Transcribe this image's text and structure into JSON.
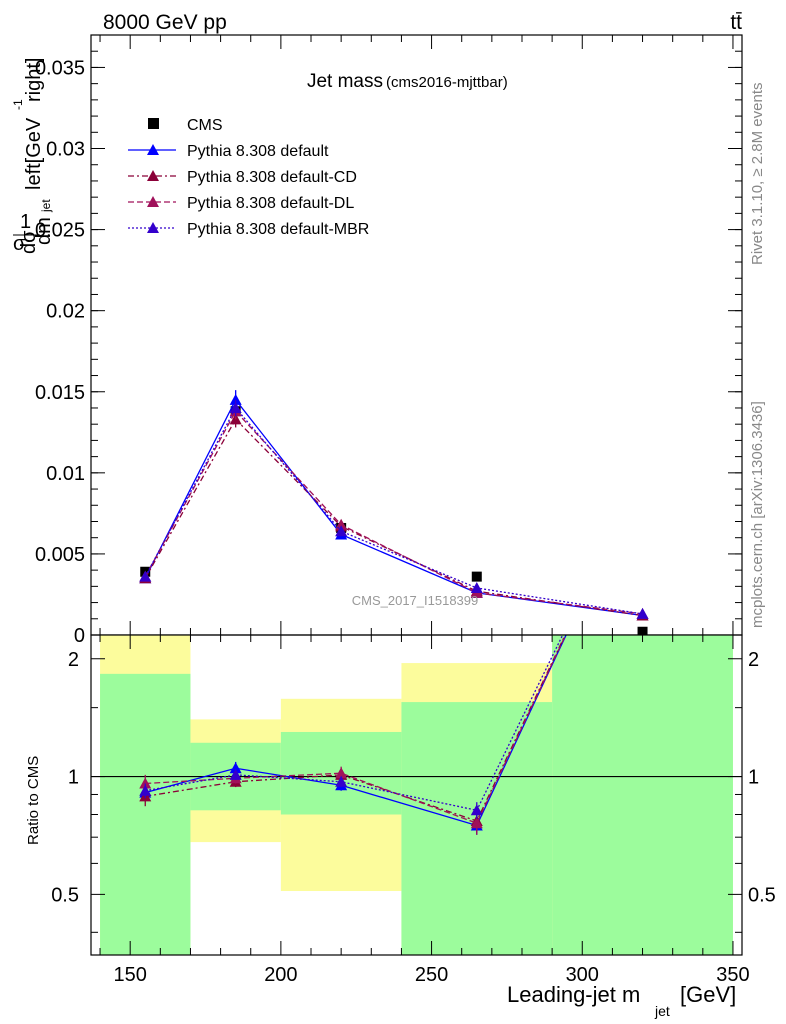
{
  "header": {
    "energy_label": "8000 GeV pp",
    "process_label": "tt̄",
    "rivet_label": "Rivet 3.1.10, ≥ 2.8M events",
    "mcplots_label": "mcplots.cern.ch [arXiv:1306.3436]",
    "watermark": "CMS_2017_I1518399"
  },
  "chart_data": [
    {
      "type": "line",
      "panel": "main",
      "title": "Jet mass",
      "subtitle": "(cms2016-mjttbar)",
      "ylabel": "1/σ dσ/dm_jet left[GeV^-1 right]",
      "xlim": [
        137,
        353
      ],
      "ylim": [
        0,
        0.037
      ],
      "x_ticks": [
        150,
        200,
        250,
        300,
        350
      ],
      "y_ticks": [
        {
          "v": 0.005,
          "label": "0.005"
        },
        {
          "v": 0.01,
          "label": "0.01"
        },
        {
          "v": 0.015,
          "label": "0.015"
        },
        {
          "v": 0.02,
          "label": "0.02"
        },
        {
          "v": 0.025,
          "label": "0.025"
        },
        {
          "v": 0.03,
          "label": "0.03"
        },
        {
          "v": 0.035,
          "label": "0.035"
        },
        {
          "v": 0,
          "label": "0"
        }
      ],
      "legend_position": "top-left",
      "series": [
        {
          "name": "CMS",
          "style": "data",
          "color": "#000000",
          "x": [
            155,
            185,
            220,
            265,
            320
          ],
          "y": [
            0.0039,
            0.0138,
            0.0066,
            0.0036,
            0.0002
          ]
        },
        {
          "name": "Pythia 8.308 default",
          "style": "solid",
          "color": "#0000ff",
          "x": [
            155,
            185,
            220,
            265,
            320
          ],
          "y": [
            0.0035,
            0.0145,
            0.0062,
            0.0026,
            0.0012
          ],
          "err": [
            0.0002,
            0.0006,
            0.0003,
            0.0002,
            0.0001
          ]
        },
        {
          "name": "Pythia 8.308 default-CD",
          "style": "dashdot",
          "color": "#8b0038",
          "x": [
            155,
            185,
            220,
            265,
            320
          ],
          "y": [
            0.0035,
            0.0133,
            0.0067,
            0.0027,
            0.0012
          ],
          "err": [
            0.0002,
            0.0005,
            0.0003,
            0.0002,
            0.0001
          ]
        },
        {
          "name": "Pythia 8.308 default-DL",
          "style": "dashed",
          "color": "#a0105a",
          "x": [
            155,
            185,
            220,
            265,
            320
          ],
          "y": [
            0.0036,
            0.0138,
            0.0068,
            0.0026,
            0.0013
          ],
          "err": [
            0.0002,
            0.0005,
            0.0003,
            0.0002,
            0.0001
          ]
        },
        {
          "name": "Pythia 8.308 default-MBR",
          "style": "dotted",
          "color": "#3300cc",
          "x": [
            155,
            185,
            220,
            265,
            320
          ],
          "y": [
            0.0036,
            0.014,
            0.0064,
            0.0029,
            0.0013
          ],
          "err": [
            0.0002,
            0.0005,
            0.0003,
            0.0002,
            0.0001
          ]
        }
      ]
    },
    {
      "type": "line",
      "panel": "ratio",
      "xlabel": "Leading-jet m_jet [GeV]",
      "ylabel": "Ratio to CMS",
      "xlim": [
        137,
        353
      ],
      "ylim": [
        0.35,
        2.3
      ],
      "scale": "log",
      "x_ticks": [
        150,
        200,
        250,
        300,
        350
      ],
      "y_ticks": [
        {
          "v": 0.5,
          "label": "0.5"
        },
        {
          "v": 1,
          "label": "1"
        },
        {
          "v": 2,
          "label": "2"
        }
      ],
      "bands": [
        {
          "x0": 140,
          "x1": 170,
          "y1_lo": 0.15,
          "y1_hi": 1.83,
          "y2_lo": 0.15,
          "y2_hi": 2.3
        },
        {
          "x0": 170,
          "x1": 200,
          "y1_lo": 0.82,
          "y1_hi": 1.22,
          "y2_lo": 0.68,
          "y2_hi": 1.4
        },
        {
          "x0": 200,
          "x1": 240,
          "y1_lo": 0.8,
          "y1_hi": 1.3,
          "y2_lo": 0.51,
          "y2_hi": 1.58
        },
        {
          "x0": 240,
          "x1": 290,
          "y1_lo": 0.15,
          "y1_hi": 1.55,
          "y2_lo": 0.15,
          "y2_hi": 1.95
        },
        {
          "x0": 290,
          "x1": 350,
          "y1_lo": 0.15,
          "y1_hi": 3.0,
          "y2_lo": 0.15,
          "y2_hi": 3.0
        }
      ],
      "band_colors": {
        "inner": "#9cfc9c",
        "outer": "#fcfc9c"
      },
      "series": [
        {
          "name": "Pythia 8.308 default",
          "style": "solid",
          "color": "#0000ff",
          "x": [
            155,
            185,
            220,
            265,
            320
          ],
          "y": [
            0.91,
            1.05,
            0.95,
            0.75,
            6.0
          ],
          "err": [
            0.04,
            0.04,
            0.03,
            0.04,
            0
          ]
        },
        {
          "name": "Pythia 8.308 default-CD",
          "style": "dashdot",
          "color": "#8b0038",
          "x": [
            155,
            185,
            220,
            265,
            320
          ],
          "y": [
            0.89,
            0.97,
            1.01,
            0.77,
            6.0
          ],
          "err": [
            0.05,
            0.03,
            0.04,
            0.05,
            0
          ]
        },
        {
          "name": "Pythia 8.308 default-DL",
          "style": "dashed",
          "color": "#a0105a",
          "x": [
            155,
            185,
            220,
            265,
            320
          ],
          "y": [
            0.96,
            0.99,
            1.02,
            0.76,
            6.0
          ],
          "err": [
            0.05,
            0.03,
            0.04,
            0.05,
            0
          ]
        },
        {
          "name": "Pythia 8.308 default-MBR",
          "style": "dotted",
          "color": "#3300cc",
          "x": [
            155,
            185,
            220,
            265,
            320
          ],
          "y": [
            0.92,
            1.01,
            0.97,
            0.82,
            6.0
          ],
          "err": [
            0.04,
            0.03,
            0.03,
            0.04,
            0
          ]
        }
      ]
    }
  ]
}
